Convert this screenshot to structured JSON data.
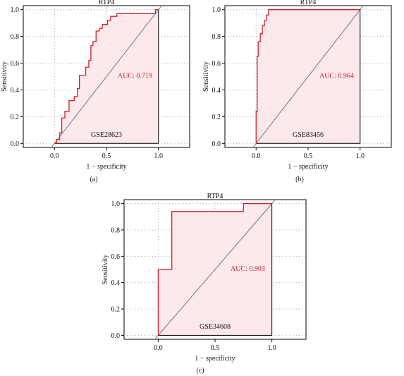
{
  "figure": {
    "panel_labels": [
      "(a)",
      "(b)",
      "(c)"
    ]
  },
  "colors": {
    "curve": "#d0202a",
    "fill": "#fde8ec",
    "diagonal": "#777777",
    "auc_text": "#d0202a",
    "axis": "#000000",
    "grid": "#aaaaaa"
  },
  "chart_data": [
    {
      "type": "line",
      "title": "RTP4",
      "xlabel": "1 − specificity",
      "ylabel": "Sensitivity",
      "xlim": [
        -0.3,
        1.3
      ],
      "ylim": [
        -0.03,
        1.03
      ],
      "xticks": [
        0.0,
        0.5,
        1.0
      ],
      "yticks": [
        0.0,
        0.2,
        0.4,
        0.6,
        0.8,
        1.0
      ],
      "xtick_labels": [
        "0.0",
        "0.5",
        "1.0"
      ],
      "ytick_labels": [
        "0.0",
        "0.2",
        "0.4",
        "0.6",
        "0.8",
        "1.0"
      ],
      "grid": true,
      "auc_label": "AUC: 0.719",
      "dataset_label": "GSE28623",
      "panel": "(a)",
      "roc": {
        "x": [
          0.0,
          0.02,
          0.02,
          0.05,
          0.05,
          0.07,
          0.07,
          0.1,
          0.1,
          0.14,
          0.14,
          0.19,
          0.19,
          0.22,
          0.22,
          0.24,
          0.24,
          0.3,
          0.3,
          0.33,
          0.33,
          0.35,
          0.35,
          0.37,
          0.37,
          0.4,
          0.4,
          0.43,
          0.43,
          0.46,
          0.46,
          0.48,
          0.48,
          0.51,
          0.51,
          0.54,
          0.54,
          0.6,
          0.6,
          0.69,
          0.69,
          0.97,
          0.97,
          1.0
        ],
        "y": [
          0.0,
          0.0,
          0.03,
          0.03,
          0.08,
          0.08,
          0.19,
          0.19,
          0.24,
          0.24,
          0.32,
          0.32,
          0.35,
          0.35,
          0.41,
          0.41,
          0.51,
          0.51,
          0.57,
          0.57,
          0.62,
          0.62,
          0.73,
          0.73,
          0.76,
          0.76,
          0.84,
          0.84,
          0.86,
          0.86,
          0.89,
          0.89,
          0.89,
          0.89,
          0.92,
          0.92,
          0.95,
          0.95,
          0.97,
          0.97,
          0.97,
          0.97,
          1.0,
          1.0
        ]
      }
    },
    {
      "type": "line",
      "title": "RTP4",
      "xlabel": "1 − specificity",
      "ylabel": "Sensitivity",
      "xlim": [
        -0.3,
        1.3
      ],
      "ylim": [
        -0.03,
        1.03
      ],
      "xticks": [
        0.0,
        0.5,
        1.0
      ],
      "yticks": [
        0.0,
        0.2,
        0.4,
        0.6,
        0.8,
        1.0
      ],
      "xtick_labels": [
        "0.0",
        "0.5",
        "1.0"
      ],
      "ytick_labels": [
        "0.0",
        "0.2",
        "0.4",
        "0.6",
        "0.8",
        "1.0"
      ],
      "grid": true,
      "auc_label": "AUC: 0.964",
      "dataset_label": "GSE83456",
      "panel": "(b)",
      "roc": {
        "x": [
          0.0,
          0.0,
          0.01,
          0.01,
          0.02,
          0.02,
          0.04,
          0.04,
          0.06,
          0.06,
          0.08,
          0.08,
          0.1,
          0.1,
          0.12,
          0.12,
          1.0
        ],
        "y": [
          0.0,
          0.24,
          0.24,
          0.65,
          0.65,
          0.76,
          0.76,
          0.82,
          0.82,
          0.88,
          0.88,
          0.92,
          0.92,
          0.96,
          0.96,
          1.0,
          1.0
        ]
      }
    },
    {
      "type": "line",
      "title": "RTP4",
      "xlabel": "1 − specificity",
      "ylabel": "Sensitivity",
      "xlim": [
        -0.3,
        1.3
      ],
      "ylim": [
        -0.03,
        1.03
      ],
      "xticks": [
        0.0,
        0.5,
        1.0
      ],
      "yticks": [
        0.0,
        0.2,
        0.4,
        0.6,
        0.8,
        1.0
      ],
      "xtick_labels": [
        "0.0",
        "0.5",
        "1.0"
      ],
      "ytick_labels": [
        "0.0",
        "0.2",
        "0.4",
        "0.6",
        "0.8",
        "1.0"
      ],
      "grid": true,
      "auc_label": "AUC: 0.903",
      "dataset_label": "GSE34608",
      "panel": "(c)",
      "roc": {
        "x": [
          0.0,
          0.0,
          0.12,
          0.12,
          0.75,
          0.75,
          1.0
        ],
        "y": [
          0.0,
          0.5,
          0.5,
          0.94,
          0.94,
          1.0,
          1.0
        ]
      }
    }
  ]
}
